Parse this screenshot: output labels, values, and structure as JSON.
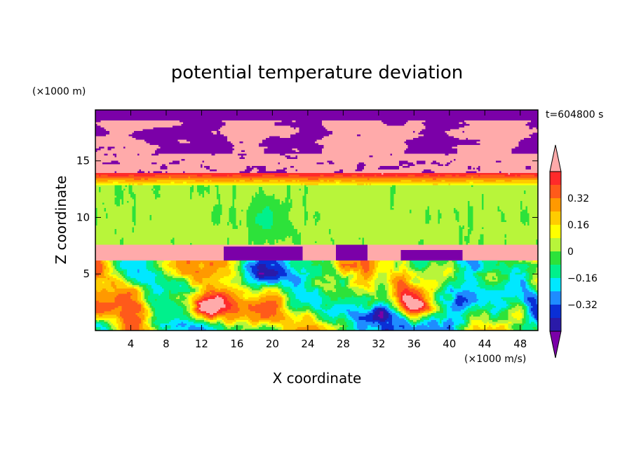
{
  "chart_data": {
    "type": "heatmap",
    "title": "potential temperature deviation",
    "xlabel": "X coordinate",
    "ylabel": "Z coordinate",
    "x_unit": "(×1000 m/s)",
    "y_unit": "(×1000 m)",
    "time_label": "t=604800 s",
    "xlim": [
      0,
      50
    ],
    "ylim": [
      0,
      19.5
    ],
    "x_ticks": [
      "4",
      "8",
      "12",
      "16",
      "20",
      "24",
      "28",
      "32",
      "36",
      "40",
      "44",
      "48"
    ],
    "y_ticks": [
      "5",
      "10",
      "15"
    ],
    "colorbar": {
      "levels": [
        -0.48,
        -0.4,
        -0.32,
        -0.24,
        -0.16,
        -0.08,
        0,
        0.08,
        0.16,
        0.24,
        0.32,
        0.4,
        0.48
      ],
      "colors": [
        "#7b00a8",
        "#2a1aa8",
        "#0a2fd6",
        "#1e8cff",
        "#00e8ff",
        "#00f08c",
        "#2de23a",
        "#b8f53a",
        "#ffff00",
        "#ffcc00",
        "#ff9900",
        "#ff5a1a",
        "#ff2a2a",
        "#ffaaaa"
      ],
      "tick_labels": [
        "0.32",
        "0.16",
        "0",
        "−0.16",
        "−0.32"
      ],
      "tick_values": [
        0.32,
        0.16,
        0,
        -0.16,
        -0.32
      ]
    }
  }
}
